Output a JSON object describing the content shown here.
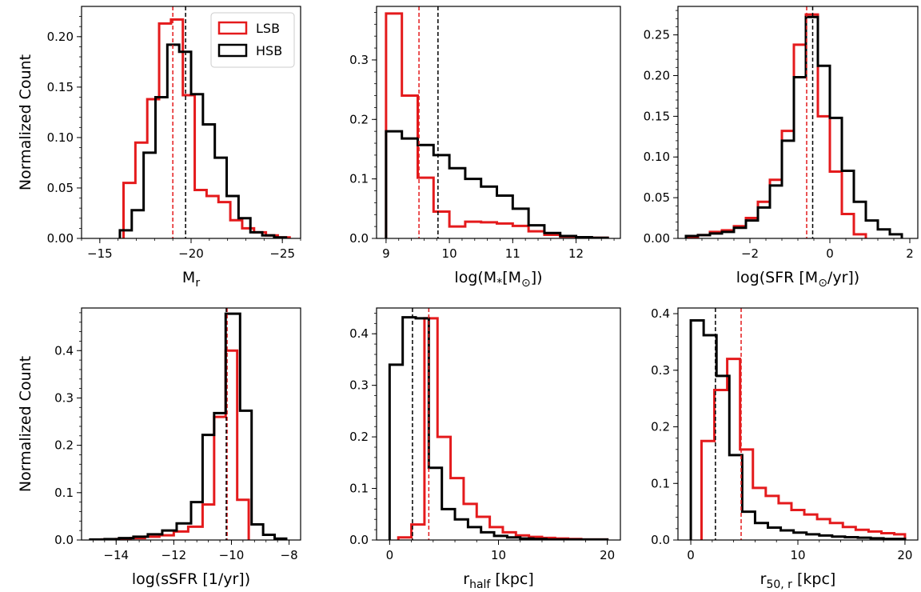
{
  "figure": {
    "ylabel": "Normalized Count"
  },
  "legend": {
    "placement": "top-right",
    "items": [
      {
        "label": "LSB",
        "color": "#e41a1c"
      },
      {
        "label": "HSB",
        "color": "#000000"
      }
    ]
  },
  "colors": {
    "LSB": "#e41a1c",
    "HSB": "#000000"
  },
  "chart_data": [
    {
      "type": "histogram",
      "xlabel": "M",
      "xlabel_sub": "r",
      "xlim": [
        -14,
        -26
      ],
      "ylim": [
        0,
        0.23
      ],
      "x_ticks": [
        -15,
        -20,
        -25
      ],
      "y_ticks": [
        0.0,
        0.05,
        0.1,
        0.15,
        0.2
      ],
      "show_ylabel": true,
      "show_legend": true,
      "series": [
        {
          "name": "LSB",
          "edges": [
            -16.3,
            -16.95,
            -17.6,
            -18.25,
            -18.9,
            -19.55,
            -20.2,
            -20.85,
            -21.5,
            -22.15,
            -22.8,
            -23.45,
            -24.1,
            -24.75,
            -25.4
          ],
          "values": [
            0.055,
            0.095,
            0.138,
            0.213,
            0.217,
            0.142,
            0.048,
            0.042,
            0.036,
            0.018,
            0.01,
            0.006,
            0.003,
            0.001
          ]
        },
        {
          "name": "HSB",
          "edges": [
            -16.1,
            -16.75,
            -17.4,
            -18.05,
            -18.7,
            -19.35,
            -20.0,
            -20.65,
            -21.3,
            -21.95,
            -22.6,
            -23.25,
            -23.9,
            -24.55,
            -25.2
          ],
          "values": [
            0.008,
            0.028,
            0.085,
            0.14,
            0.192,
            0.185,
            0.143,
            0.113,
            0.08,
            0.042,
            0.02,
            0.006,
            0.003,
            0.001
          ]
        }
      ],
      "medians": {
        "LSB": -19.0,
        "HSB": -19.7
      }
    },
    {
      "type": "histogram",
      "xlabel": "log(M",
      "xlabel_sub": "*",
      "xlabel_mid": "[M",
      "xlabel_sub2": "⊙",
      "xlabel_end": "])",
      "xlim": [
        8.85,
        12.7
      ],
      "ylim": [
        0,
        0.39
      ],
      "x_ticks": [
        9,
        10,
        11,
        12
      ],
      "y_ticks": [
        0.0,
        0.1,
        0.2,
        0.3
      ],
      "show_ylabel": false,
      "show_legend": false,
      "series": [
        {
          "name": "LSB",
          "edges": [
            9.0,
            9.25,
            9.5,
            9.75,
            10.0,
            10.25,
            10.5,
            10.75,
            11.0,
            11.25,
            11.5,
            11.75,
            12.0,
            12.25,
            12.5
          ],
          "values": [
            0.378,
            0.24,
            0.102,
            0.045,
            0.02,
            0.028,
            0.027,
            0.025,
            0.021,
            0.012,
            0.006,
            0.003,
            0.001,
            0.001
          ]
        },
        {
          "name": "HSB",
          "edges": [
            9.0,
            9.25,
            9.5,
            9.75,
            10.0,
            10.25,
            10.5,
            10.75,
            11.0,
            11.25,
            11.5,
            11.75,
            12.0,
            12.25,
            12.5
          ],
          "values": [
            0.18,
            0.168,
            0.157,
            0.14,
            0.118,
            0.1,
            0.087,
            0.072,
            0.05,
            0.022,
            0.009,
            0.004,
            0.002,
            0.001
          ]
        }
      ],
      "medians": {
        "LSB": 9.52,
        "HSB": 9.82
      }
    },
    {
      "type": "histogram",
      "xlabel": "log(SFR [M",
      "xlabel_sub": "⊙",
      "xlabel_end": "/yr])",
      "xlim": [
        -3.8,
        2.2
      ],
      "ylim": [
        0,
        0.285
      ],
      "x_ticks": [
        -2,
        0,
        2
      ],
      "y_ticks": [
        0.0,
        0.05,
        0.1,
        0.15,
        0.2,
        0.25
      ],
      "show_ylabel": false,
      "show_legend": false,
      "series": [
        {
          "name": "LSB",
          "edges": [
            -3.6,
            -3.3,
            -3.0,
            -2.7,
            -2.4,
            -2.1,
            -1.8,
            -1.5,
            -1.2,
            -0.9,
            -0.6,
            -0.3,
            0.0,
            0.3,
            0.6,
            0.9
          ],
          "values": [
            0.002,
            0.004,
            0.008,
            0.01,
            0.015,
            0.025,
            0.045,
            0.072,
            0.132,
            0.238,
            0.275,
            0.15,
            0.082,
            0.03,
            0.005
          ]
        },
        {
          "name": "HSB",
          "edges": [
            -3.6,
            -3.3,
            -3.0,
            -2.7,
            -2.4,
            -2.1,
            -1.8,
            -1.5,
            -1.2,
            -0.9,
            -0.6,
            -0.3,
            0.0,
            0.3,
            0.6,
            0.9,
            1.2,
            1.5,
            1.8
          ],
          "values": [
            0.003,
            0.004,
            0.006,
            0.008,
            0.013,
            0.022,
            0.038,
            0.065,
            0.12,
            0.198,
            0.272,
            0.212,
            0.148,
            0.083,
            0.045,
            0.022,
            0.011,
            0.005
          ]
        }
      ],
      "medians": {
        "LSB": -0.58,
        "HSB": -0.43
      }
    },
    {
      "type": "histogram",
      "xlabel": "log(sSFR [1/yr])",
      "xlim": [
        -15.2,
        -7.6
      ],
      "ylim": [
        0,
        0.49
      ],
      "x_ticks": [
        -14,
        -12,
        -10,
        -8
      ],
      "y_ticks": [
        0.0,
        0.1,
        0.2,
        0.3,
        0.4
      ],
      "show_ylabel": true,
      "show_legend": false,
      "series": [
        {
          "name": "LSB",
          "edges": [
            -14.5,
            -14.0,
            -13.5,
            -13.0,
            -12.5,
            -12.0,
            -11.5,
            -11.0,
            -10.6,
            -10.2,
            -9.8,
            -9.4
          ],
          "values": [
            0.001,
            0.002,
            0.004,
            0.007,
            0.01,
            0.018,
            0.028,
            0.075,
            0.26,
            0.4,
            0.085
          ]
        },
        {
          "name": "HSB",
          "edges": [
            -14.9,
            -14.4,
            -13.9,
            -13.4,
            -12.9,
            -12.4,
            -11.9,
            -11.4,
            -11.0,
            -10.6,
            -10.2,
            -9.7,
            -9.3,
            -8.9,
            -8.5,
            -8.1
          ],
          "values": [
            0.001,
            0.002,
            0.004,
            0.007,
            0.012,
            0.02,
            0.035,
            0.08,
            0.222,
            0.268,
            0.478,
            0.273,
            0.033,
            0.011,
            0.003
          ]
        }
      ],
      "medians": {
        "LSB": -10.15,
        "HSB": -10.18
      }
    },
    {
      "type": "histogram",
      "xlabel": "r",
      "xlabel_sub": "half",
      "xlabel_end": " [kpc]",
      "xlim": [
        -1.2,
        21.2
      ],
      "ylim": [
        0,
        0.45
      ],
      "x_ticks": [
        0,
        10,
        20
      ],
      "y_ticks": [
        0.0,
        0.1,
        0.2,
        0.3,
        0.4
      ],
      "show_ylabel": false,
      "show_legend": false,
      "series": [
        {
          "name": "LSB",
          "edges": [
            0.8,
            2.0,
            3.2,
            4.4,
            5.6,
            6.8,
            8.0,
            9.2,
            10.4,
            11.6,
            12.8,
            14.0,
            15.2,
            16.4,
            17.6,
            18.8,
            20.0
          ],
          "values": [
            0.005,
            0.03,
            0.43,
            0.2,
            0.12,
            0.07,
            0.045,
            0.025,
            0.015,
            0.009,
            0.006,
            0.004,
            0.003,
            0.002,
            0.001,
            0.001
          ]
        },
        {
          "name": "HSB",
          "edges": [
            0.0,
            1.2,
            2.4,
            3.6,
            4.8,
            6.0,
            7.2,
            8.4,
            9.6,
            10.8,
            12.0,
            13.2,
            14.4,
            15.6,
            16.8,
            18.0,
            19.2,
            20.0
          ],
          "values": [
            0.34,
            0.432,
            0.43,
            0.14,
            0.06,
            0.04,
            0.025,
            0.015,
            0.008,
            0.005,
            0.003,
            0.002,
            0.001,
            0.001,
            0.001,
            0.001,
            0.001
          ]
        }
      ],
      "medians": {
        "LSB": 3.6,
        "HSB": 2.1
      }
    },
    {
      "type": "histogram",
      "xlabel": "r",
      "xlabel_sub": "50, r",
      "xlabel_end": " [kpc]",
      "xlim": [
        -1.2,
        21.2
      ],
      "ylim": [
        0,
        0.41
      ],
      "x_ticks": [
        0,
        10,
        20
      ],
      "y_ticks": [
        0.0,
        0.1,
        0.2,
        0.3,
        0.4
      ],
      "show_ylabel": false,
      "show_legend": false,
      "series": [
        {
          "name": "LSB",
          "edges": [
            1.0,
            2.2,
            3.4,
            4.6,
            5.8,
            7.0,
            8.2,
            9.4,
            10.6,
            11.8,
            13.0,
            14.2,
            15.4,
            16.6,
            17.8,
            19.0,
            20.0
          ],
          "values": [
            0.175,
            0.265,
            0.32,
            0.16,
            0.092,
            0.078,
            0.065,
            0.053,
            0.045,
            0.037,
            0.03,
            0.023,
            0.018,
            0.015,
            0.012,
            0.01
          ]
        },
        {
          "name": "HSB",
          "edges": [
            0.0,
            1.2,
            2.4,
            3.6,
            4.8,
            6.0,
            7.2,
            8.4,
            9.6,
            10.8,
            12.0,
            13.2,
            14.4,
            15.6,
            16.8,
            18.0,
            19.2,
            20.0
          ],
          "values": [
            0.388,
            0.362,
            0.29,
            0.15,
            0.05,
            0.03,
            0.022,
            0.017,
            0.013,
            0.01,
            0.008,
            0.006,
            0.005,
            0.004,
            0.003,
            0.002,
            0.002
          ]
        }
      ],
      "medians": {
        "LSB": 4.7,
        "HSB": 2.3
      }
    }
  ]
}
